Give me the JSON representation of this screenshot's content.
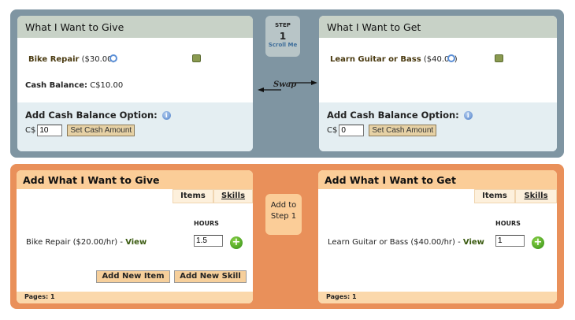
{
  "step1": {
    "give": {
      "title": "What I Want to Give",
      "item_name": "Bike Repair",
      "item_price": "($30.00)",
      "cash_label": "Cash Balance:",
      "cash_value": "C$10.00",
      "option_label": "Add Cash Balance Option:",
      "currency": "C$",
      "cash_input": "10",
      "set_button": "Set Cash Amount"
    },
    "get": {
      "title": "What I Want to Get",
      "item_name": "Learn Guitar or Bass",
      "item_price": "($40.00)",
      "option_label": "Add Cash Balance Option:",
      "currency": "C$",
      "cash_input": "0",
      "set_button": "Set Cash Amount"
    },
    "step": {
      "label": "STEP",
      "number": "1",
      "scroll": "Scroll Me"
    },
    "swap": "Swap"
  },
  "step2": {
    "give": {
      "title": "Add What I Want to Give",
      "tabs": [
        "Items",
        "Skills"
      ],
      "hours_label": "HOURS",
      "row_text": "Bike Repair ($20.00/hr) - ",
      "row_link": "View",
      "hours_value": "1.5",
      "add_item": "Add New Item",
      "add_skill": "Add New Skill",
      "pages": "Pages: 1"
    },
    "get": {
      "title": "Add What I Want to Get",
      "tabs": [
        "Items",
        "Skills"
      ],
      "hours_label": "HOURS",
      "row_text": "Learn Guitar or Bass ($40.00/hr) - ",
      "row_link": "View",
      "hours_value": "1",
      "pages": "Pages: 1"
    },
    "add_to_step": "Add to Step 1"
  },
  "colors": {
    "top_panel": "#7f95a2",
    "bottom_panel": "#e9905a",
    "header_gray": "#c8d2c7",
    "header_orange": "#fbcd98"
  }
}
